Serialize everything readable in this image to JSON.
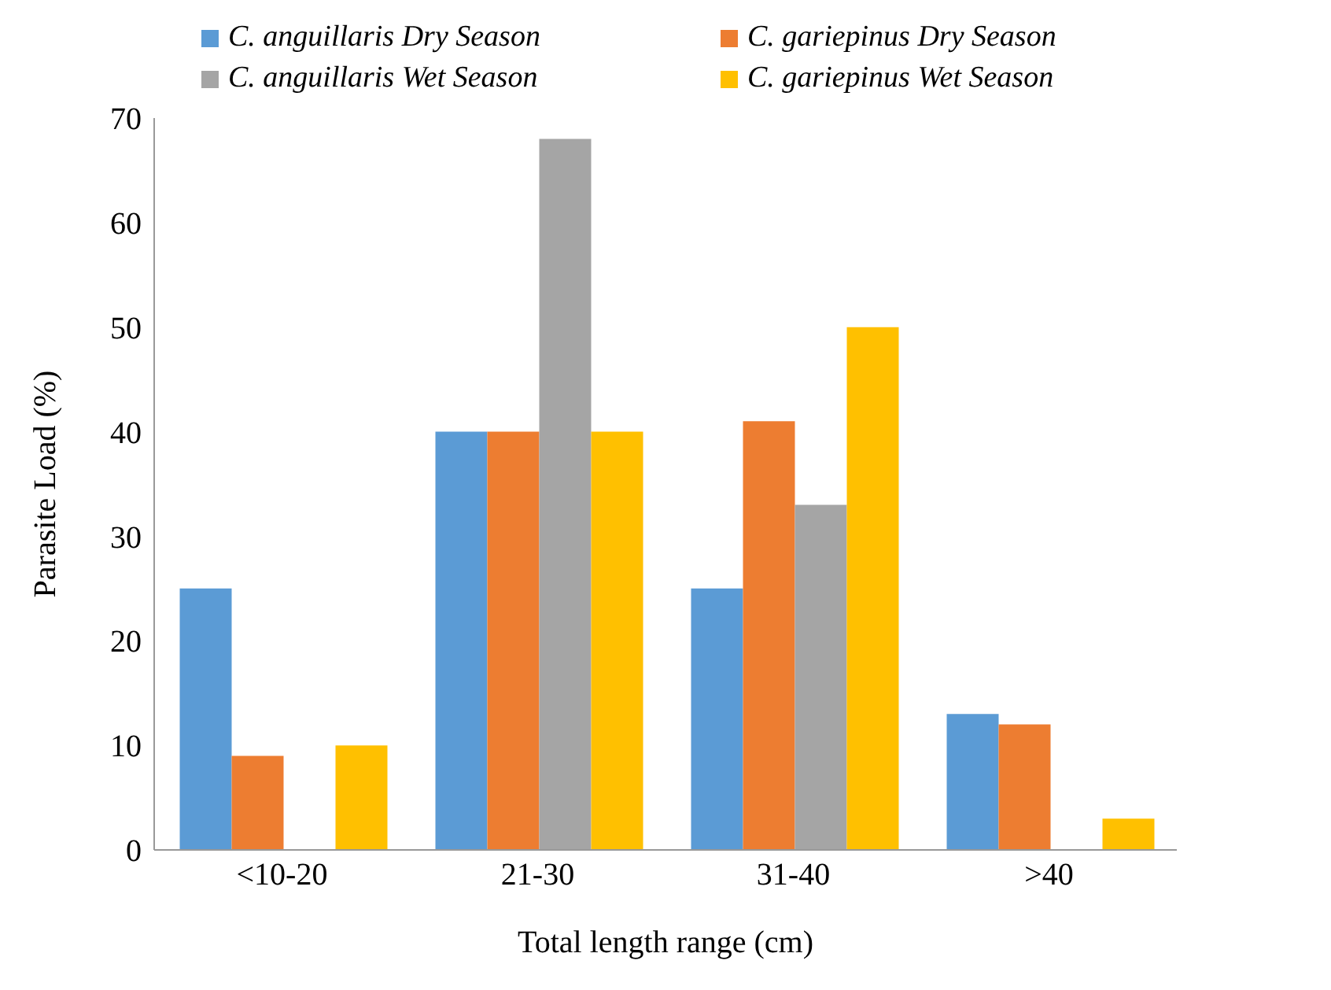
{
  "chart_data": {
    "type": "bar",
    "xlabel": "Total length range (cm)",
    "ylabel": "Parasite  Load (%)",
    "categories": [
      "<10-20",
      "21-30",
      "31-40",
      ">40"
    ],
    "series": [
      {
        "name": "C. anguillaris Dry Season",
        "color": "#5b9bd5",
        "values": [
          25,
          40,
          25,
          13
        ]
      },
      {
        "name": "C. gariepinus Dry Season",
        "color": "#ed7d31",
        "values": [
          9,
          40,
          41,
          12
        ]
      },
      {
        "name": "C. anguillaris Wet Season",
        "color": "#a5a5a5",
        "values": [
          0,
          68,
          33,
          0
        ]
      },
      {
        "name": "C. gariepinus Wet Season",
        "color": "#ffc000",
        "values": [
          10,
          40,
          50,
          3
        ]
      }
    ],
    "ylim": [
      0,
      70
    ],
    "yticks": [
      0,
      10,
      20,
      30,
      40,
      50,
      60,
      70
    ],
    "grid": false,
    "legend": "top"
  }
}
